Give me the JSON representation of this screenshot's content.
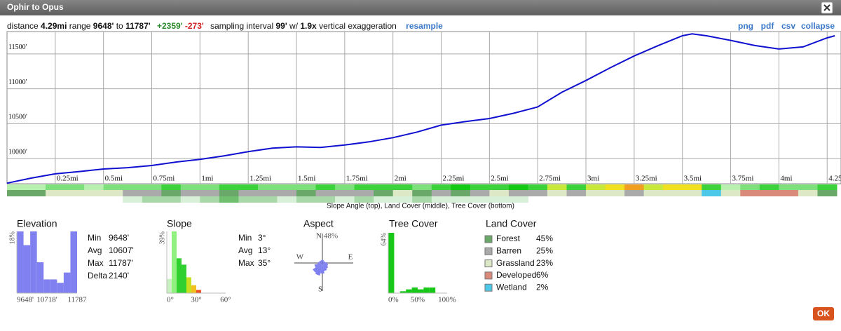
{
  "header": {
    "title": "Ophir to Opus"
  },
  "stats": {
    "distance_label": "distance",
    "distance": "4.29mi",
    "range_label": "range",
    "range_min": "9648'",
    "to_label": "to",
    "range_max": "11787'",
    "gain": "+2359'",
    "loss": "-273'",
    "sampling_label": "sampling interval",
    "interval": "99'",
    "w_label": "w/",
    "exaggeration": "1.9x",
    "exaggeration_label": "vertical exaggeration",
    "resample": "resample"
  },
  "links": [
    "png",
    "pdf",
    "csv",
    "collapse"
  ],
  "profile": {
    "type": "line",
    "color": "#1010d0",
    "x": [
      0,
      0.125,
      0.25,
      0.375,
      0.5,
      0.625,
      0.75,
      0.875,
      1.0,
      1.125,
      1.25,
      1.375,
      1.5,
      1.625,
      1.75,
      1.875,
      2.0,
      2.125,
      2.25,
      2.375,
      2.5,
      2.625,
      2.75,
      2.875,
      3.0,
      3.125,
      3.25,
      3.375,
      3.5,
      3.55,
      3.625,
      3.75,
      3.875,
      4.0,
      4.125,
      4.25,
      4.29
    ],
    "values": [
      9648,
      9720,
      9782,
      9815,
      9851,
      9870,
      9901,
      9950,
      9990,
      10040,
      10099,
      10150,
      10168,
      10160,
      10195,
      10240,
      10300,
      10380,
      10480,
      10530,
      10574,
      10650,
      10740,
      10950,
      11119,
      11300,
      11470,
      11620,
      11760,
      11787,
      11760,
      11693,
      11620,
      11570,
      11600,
      11730,
      11760
    ],
    "xlim": [
      0,
      4.3
    ],
    "ylim": [
      9640,
      11820
    ],
    "xticks": [
      {
        "value": 0.25,
        "label": "0.25mi"
      },
      {
        "value": 0.5,
        "label": "0.5mi"
      },
      {
        "value": 0.75,
        "label": "0.75mi"
      },
      {
        "value": 1,
        "label": "1mi"
      },
      {
        "value": 1.25,
        "label": "1.25mi"
      },
      {
        "value": 1.5,
        "label": "1.5mi"
      },
      {
        "value": 1.75,
        "label": "1.75mi"
      },
      {
        "value": 2,
        "label": "2mi"
      },
      {
        "value": 2.25,
        "label": "2.25mi"
      },
      {
        "value": 2.5,
        "label": "2.5mi"
      },
      {
        "value": 2.75,
        "label": "2.75mi"
      },
      {
        "value": 3,
        "label": "3mi"
      },
      {
        "value": 3.25,
        "label": "3.25mi"
      },
      {
        "value": 3.5,
        "label": "3.5mi"
      },
      {
        "value": 3.75,
        "label": "3.75mi"
      },
      {
        "value": 4,
        "label": "4mi"
      },
      {
        "value": 4.25,
        "label": "4.25mi"
      }
    ],
    "yticks": [
      {
        "value": 10000,
        "label": "10000'"
      },
      {
        "value": 10500,
        "label": "10500'"
      },
      {
        "value": 11000,
        "label": "11000'"
      },
      {
        "value": 11500,
        "label": "11500'"
      }
    ]
  },
  "strips": {
    "slope": [
      "#b8f0b0",
      "#b8f0b0",
      "#7de07a",
      "#7de07a",
      "#b8f0b0",
      "#7de07a",
      "#7de07a",
      "#7de07a",
      "#3cd23c",
      "#7de07a",
      "#7de07a",
      "#3cd23c",
      "#3cd23c",
      "#7de07a",
      "#7de07a",
      "#7de07a",
      "#3cd23c",
      "#7de07a",
      "#3cd23c",
      "#3cd23c",
      "#3cd23c",
      "#7de07a",
      "#3cd23c",
      "#14c814",
      "#3cd23c",
      "#3cd23c",
      "#14c814",
      "#3cd23c",
      "#c8e83c",
      "#3cd23c",
      "#c8e83c",
      "#f0e020",
      "#f0a020",
      "#c8e83c",
      "#f0e020",
      "#f0e020",
      "#3cd23c",
      "#b8f0b0",
      "#7de07a",
      "#3cd23c",
      "#7de07a",
      "#7de07a",
      "#3cd23c"
    ],
    "land": [
      "#6aa86a",
      "#6aa86a",
      "#dde8c6",
      "#dde8c6",
      "#dde8c6",
      "#dde8c6",
      "#aaaaaa",
      "#aaaaaa",
      "#6aa86a",
      "#aaaaaa",
      "#aaaaaa",
      "#6aa86a",
      "#aaaaaa",
      "#aaaaaa",
      "#aaaaaa",
      "#6aa86a",
      "#aaaaaa",
      "#aaaaaa",
      "#aaaaaa",
      "#6aa86a",
      "#dde8c6",
      "#6aa86a",
      "#aaaaaa",
      "#6aa86a",
      "#aaaaaa",
      "#dde8c6",
      "#aaaaaa",
      "#aaaaaa",
      "#dde8c6",
      "#aaaaaa",
      "#dde8c6",
      "#dde8c6",
      "#aaaaaa",
      "#dde8c6",
      "#dde8c6",
      "#dde8c6",
      "#4cc8e8",
      "#dde8c6",
      "#d98a7a",
      "#d98a7a",
      "#d98a7a",
      "#dde8c6",
      "#6aa86a"
    ],
    "tree": [
      null,
      null,
      null,
      null,
      null,
      null,
      "#d8f0d8",
      "#a8d8a8",
      "#a8d8a8",
      "#d8f0d8",
      "#a8d8a8",
      "#6fbf6f",
      "#a8d8a8",
      "#a8d8a8",
      "#d8f0d8",
      "#a8d8a8",
      "#a8d8a8",
      "#d8f0d8",
      "#a8d8a8",
      "#d8f0d8",
      "#d8f0d8",
      "#a8d8a8",
      "#d8f0d8",
      "#d8f0d8",
      "#d8f0d8",
      "#d8f0d8",
      "#d8f0d8",
      null,
      null,
      null,
      null,
      null,
      null,
      null,
      null,
      null,
      null,
      null,
      null,
      null,
      null,
      null,
      null
    ],
    "caption": "Slope Angle (top), Land Cover (middle), Tree Cover (bottom)"
  },
  "elevation": {
    "title": "Elevation",
    "color": "#8080f0",
    "ymax": {
      "value": 18,
      "label": "18%"
    },
    "values": [
      18,
      14,
      18,
      9,
      4,
      4,
      3,
      6,
      18
    ],
    "xlabels": [
      "9648'",
      "10718'",
      "11787"
    ],
    "stats": [
      {
        "label": "Min",
        "value": "9648'"
      },
      {
        "label": "Avg",
        "value": "10607'"
      },
      {
        "label": "Max",
        "value": "11787'"
      },
      {
        "label": "Delta",
        "value": "2140'"
      }
    ]
  },
  "slope": {
    "title": "Slope",
    "ymax": {
      "value": 39,
      "label": "39%"
    },
    "values": [
      9,
      39,
      22,
      18,
      10,
      5,
      2,
      0,
      0,
      0,
      0,
      0
    ],
    "colors": [
      "#c8f0c0",
      "#90f080",
      "#30d030",
      "#30d030",
      "#c8e020",
      "#f0c020",
      "#f05020",
      "#e02020",
      "#e02020",
      "#e02020",
      "#e02020",
      "#e02020"
    ],
    "xlabels": [
      "0°",
      "30°",
      "60°"
    ],
    "stats": [
      {
        "label": "Min",
        "value": "3°"
      },
      {
        "label": "Avg",
        "value": "13°"
      },
      {
        "label": "Max",
        "value": "35°"
      }
    ]
  },
  "aspect": {
    "title": "Aspect",
    "color": "#7f80f0",
    "max": {
      "value": 48,
      "label": "48%"
    },
    "directions": [
      "N",
      "E",
      "S",
      "W"
    ],
    "values": [
      6,
      5,
      4,
      5,
      8,
      10,
      12,
      14,
      18,
      22,
      20,
      14,
      8,
      6,
      5,
      5
    ]
  },
  "tree_cover": {
    "title": "Tree Cover",
    "color": "#18c818",
    "ymax": {
      "value": 64,
      "label": "64%"
    },
    "values": [
      64,
      0,
      2,
      4,
      6,
      4,
      6,
      6,
      0,
      0
    ],
    "xlabels": [
      "0%",
      "50%",
      "100%"
    ]
  },
  "land_cover": {
    "title": "Land Cover",
    "items": [
      {
        "name": "Forest",
        "value": "45%",
        "color": "#6aa86a"
      },
      {
        "name": "Barren",
        "value": "25%",
        "color": "#aaaaaa"
      },
      {
        "name": "Grassland",
        "value": "23%",
        "color": "#dde8c6"
      },
      {
        "name": "Developed",
        "value": "6%",
        "color": "#d98a7a"
      },
      {
        "name": "Wetland",
        "value": "2%",
        "color": "#4cc8e8"
      }
    ]
  },
  "ok": "OK"
}
